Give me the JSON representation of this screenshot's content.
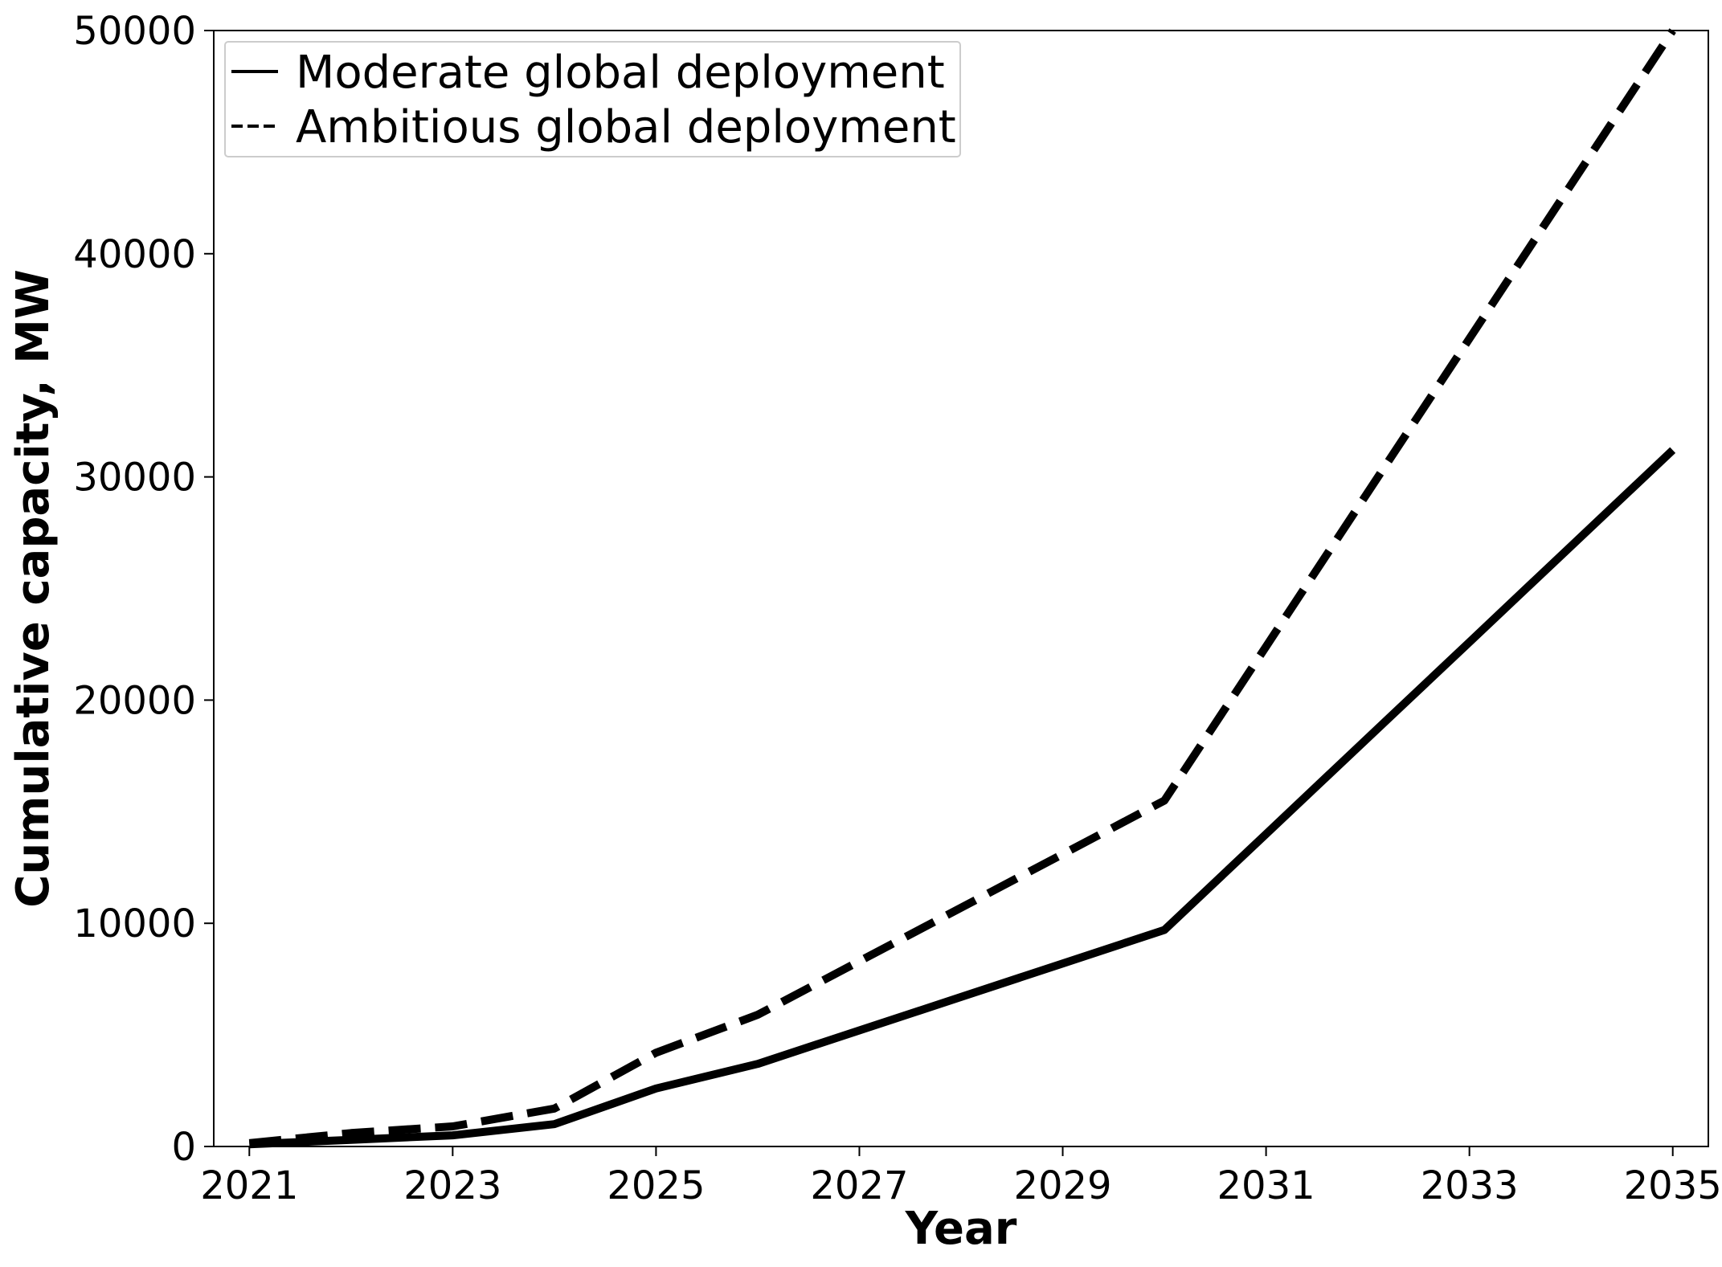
{
  "chart_data": {
    "type": "line",
    "title": "",
    "xlabel": "Year",
    "ylabel": "Cumulative capacity, MW",
    "xlim": [
      2020.65,
      2035.35
    ],
    "ylim": [
      0,
      50000
    ],
    "xticks": [
      2021,
      2023,
      2025,
      2027,
      2029,
      2031,
      2033,
      2035
    ],
    "yticks": [
      0,
      10000,
      20000,
      30000,
      40000,
      50000
    ],
    "grid": false,
    "legend_position": "top-left",
    "series": [
      {
        "name": "Moderate global deployment",
        "style": "solid",
        "color": "#000000",
        "x": [
          2021,
          2022,
          2023,
          2024,
          2025,
          2026,
          2027,
          2028,
          2029,
          2030,
          2031,
          2032,
          2033,
          2034,
          2035
        ],
        "y": [
          100,
          300,
          500,
          1000,
          2600,
          3700,
          5200,
          6700,
          8200,
          9700,
          14000,
          18300,
          22600,
          26900,
          31200
        ]
      },
      {
        "name": "Ambitious global deployment",
        "style": "dashed",
        "color": "#000000",
        "x": [
          2021,
          2022,
          2023,
          2024,
          2025,
          2026,
          2027,
          2028,
          2029,
          2030,
          2031,
          2032,
          2033,
          2034,
          2035
        ],
        "y": [
          150,
          600,
          900,
          1700,
          4200,
          5900,
          8300,
          10700,
          13100,
          15500,
          22400,
          29300,
          36200,
          43100,
          50000
        ]
      }
    ]
  }
}
